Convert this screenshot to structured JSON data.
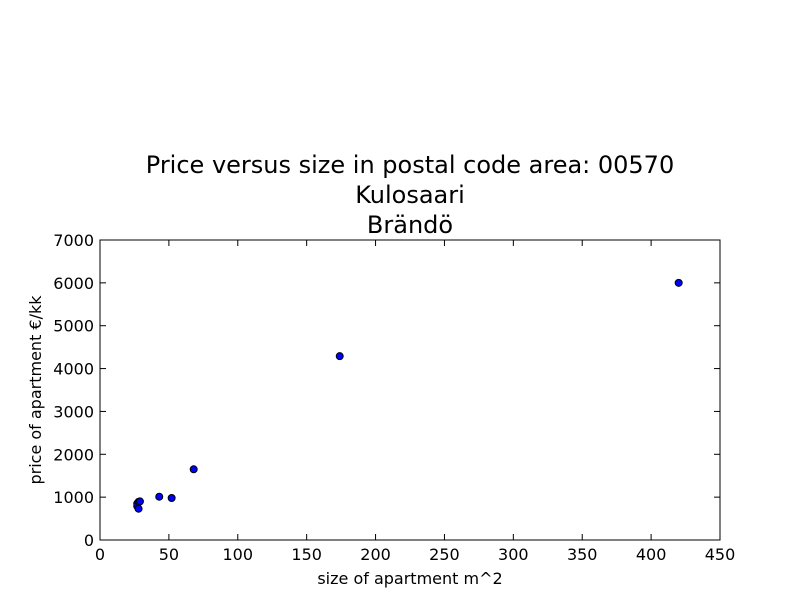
{
  "chart_data": {
    "type": "scatter",
    "title_lines": [
      "Price versus size in postal code area: 00570",
      "Kulosaari",
      "Brändö"
    ],
    "xlabel": "size of apartment m^2",
    "ylabel": "price of apartment €/kk",
    "xlim": [
      0,
      450
    ],
    "ylim": [
      0,
      7000
    ],
    "xticks": [
      0,
      50,
      100,
      150,
      200,
      250,
      300,
      350,
      400,
      450
    ],
    "yticks": [
      0,
      1000,
      2000,
      3000,
      4000,
      5000,
      6000,
      7000
    ],
    "grid": false,
    "marker_color": "#0000ff",
    "marker_edge_color": "#000000",
    "points": [
      {
        "x": 27,
        "y": 790
      },
      {
        "x": 27,
        "y": 850
      },
      {
        "x": 28,
        "y": 890
      },
      {
        "x": 28,
        "y": 730
      },
      {
        "x": 29,
        "y": 900
      },
      {
        "x": 43,
        "y": 1010
      },
      {
        "x": 52,
        "y": 980
      },
      {
        "x": 68,
        "y": 1650
      },
      {
        "x": 174,
        "y": 4290
      },
      {
        "x": 420,
        "y": 6000
      }
    ]
  }
}
